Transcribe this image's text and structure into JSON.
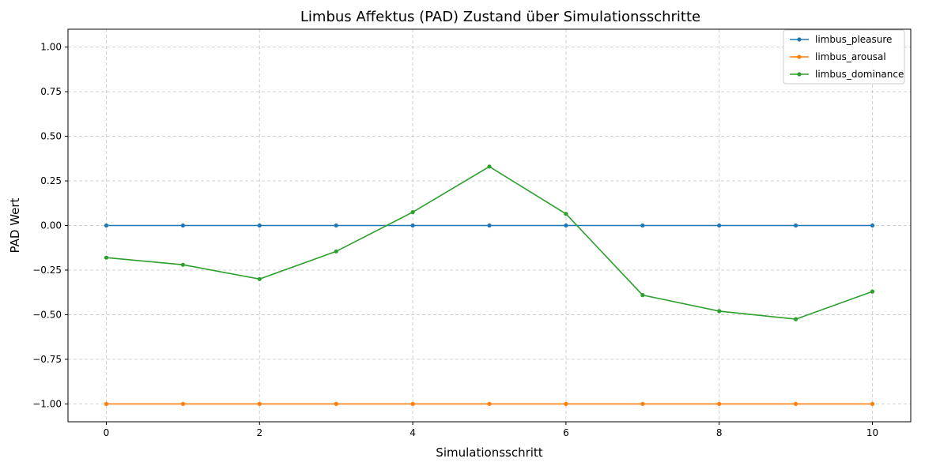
{
  "chart_data": {
    "type": "line",
    "title": "Limbus Affektus (PAD) Zustand über Simulationsschritte",
    "xlabel": "Simulationsschritt",
    "ylabel": "PAD Wert",
    "xlim": [
      -0.5,
      10.5
    ],
    "ylim": [
      -1.1,
      1.1
    ],
    "x": [
      0,
      1,
      2,
      3,
      4,
      5,
      6,
      7,
      8,
      9,
      10
    ],
    "x_ticks": [
      0,
      2,
      4,
      6,
      8,
      10
    ],
    "x_tick_labels": [
      "0",
      "2",
      "4",
      "6",
      "8",
      "10"
    ],
    "y_ticks": [
      -1.0,
      -0.75,
      -0.5,
      -0.25,
      0.0,
      0.25,
      0.5,
      0.75,
      1.0
    ],
    "y_tick_labels": [
      "−1.00",
      "−0.75",
      "−0.50",
      "−0.25",
      "0.00",
      "0.25",
      "0.50",
      "0.75",
      "1.00"
    ],
    "grid": true,
    "legend_position": "top-right",
    "series": [
      {
        "name": "limbus_pleasure",
        "color": "#1f77b4",
        "values": [
          0,
          0,
          0,
          0,
          0,
          0,
          0,
          0,
          0,
          0,
          0
        ]
      },
      {
        "name": "limbus_arousal",
        "color": "#ff7f0e",
        "values": [
          -1,
          -1,
          -1,
          -1,
          -1,
          -1,
          -1,
          -1,
          -1,
          -1,
          -1
        ]
      },
      {
        "name": "limbus_dominance",
        "color": "#2ca02c",
        "values": [
          -0.18,
          -0.22,
          -0.3,
          -0.145,
          0.075,
          0.33,
          0.065,
          -0.39,
          -0.48,
          -0.525,
          -0.37
        ]
      }
    ]
  }
}
